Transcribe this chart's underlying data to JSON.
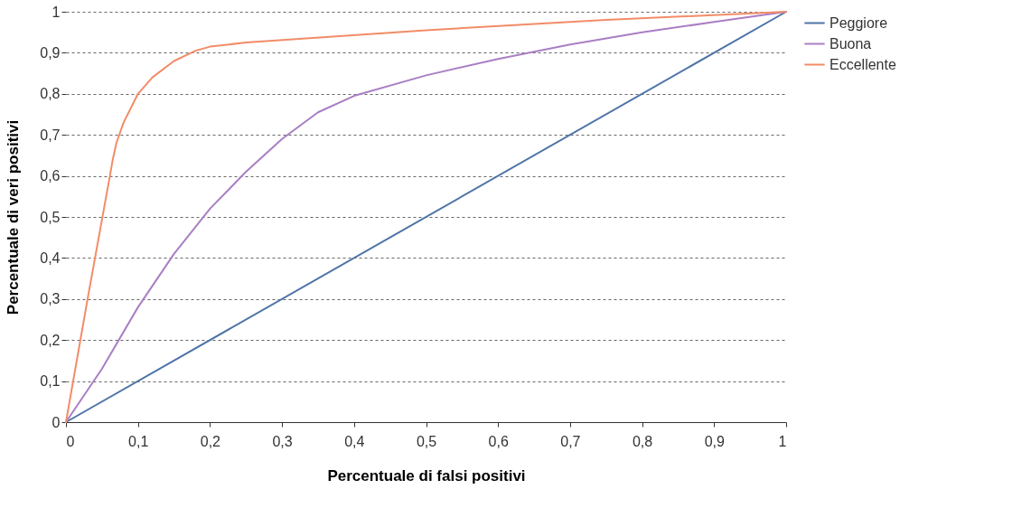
{
  "chart_data": {
    "type": "line",
    "xlabel": "Percentuale di falsi positivi",
    "ylabel": "Percentuale di veri positivi",
    "xlim": [
      0,
      1
    ],
    "ylim": [
      0,
      1
    ],
    "xticks": [
      0,
      {
        "value": 0.1,
        "label": "0,1"
      },
      {
        "value": 0.2,
        "label": "0,2"
      },
      {
        "value": 0.3,
        "label": "0,3"
      },
      {
        "value": 0.4,
        "label": "0,4"
      },
      {
        "value": 0.5,
        "label": "0,5"
      },
      {
        "value": 0.6,
        "label": "0,6"
      },
      {
        "value": 0.7,
        "label": "0,7"
      },
      {
        "value": 0.8,
        "label": "0,8"
      },
      {
        "value": 0.9,
        "label": "0,9"
      },
      1
    ],
    "yticks": [
      0,
      {
        "value": 0.1,
        "label": "0,1"
      },
      {
        "value": 0.2,
        "label": "0,2"
      },
      {
        "value": 0.3,
        "label": "0,3"
      },
      {
        "value": 0.4,
        "label": "0,4"
      },
      {
        "value": 0.5,
        "label": "0,5"
      },
      {
        "value": 0.6,
        "label": "0,6"
      },
      {
        "value": 0.7,
        "label": "0,7"
      },
      {
        "value": 0.8,
        "label": "0,8"
      },
      {
        "value": 0.9,
        "label": "0,9"
      },
      1
    ],
    "grid": "y",
    "legend": "top right",
    "marker": "none",
    "line_style": "solid",
    "series": [
      {
        "name": "Peggiore",
        "color": "#4f74a8",
        "x": [
          0,
          1
        ],
        "values": [
          0,
          1
        ]
      },
      {
        "name": "Buona",
        "color": "#a97fc4",
        "x": [
          0,
          0.05,
          0.1,
          0.15,
          0.2,
          0.25,
          0.3,
          0.35,
          0.4,
          0.5,
          0.6,
          0.7,
          0.8,
          0.9,
          1
        ],
        "values": [
          0,
          0.13,
          0.28,
          0.41,
          0.52,
          0.61,
          0.69,
          0.755,
          0.795,
          0.845,
          0.885,
          0.92,
          0.95,
          0.975,
          1
        ]
      },
      {
        "name": "Eccellente",
        "color": "#f28c68",
        "x": [
          0,
          0.03,
          0.061,
          0.065,
          0.07,
          0.08,
          0.1,
          0.12,
          0.15,
          0.18,
          0.2,
          0.25,
          0.5,
          0.75,
          1
        ],
        "values": [
          0,
          0.3,
          0.6,
          0.64,
          0.68,
          0.73,
          0.8,
          0.84,
          0.88,
          0.905,
          0.915,
          0.925,
          0.955,
          0.98,
          1
        ]
      }
    ]
  }
}
